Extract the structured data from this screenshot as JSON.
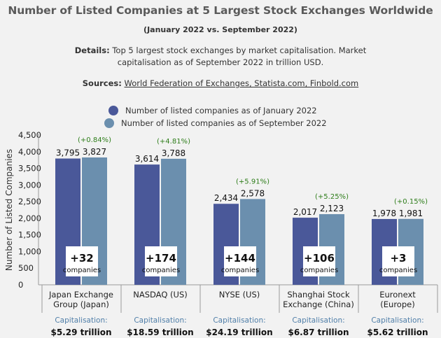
{
  "title": "Number of Listed Companies at 5 Largest Stock Exchanges Worldwide",
  "subtitle": "(January 2022 vs. September 2022)",
  "details": {
    "label": "Details:",
    "text_line1": "Top 5 largest stock exchanges by market capitalisation. Market",
    "text_line2": "capitalisation as of September 2022 in trillion USD."
  },
  "sources": {
    "label": "Sources:",
    "text": "World Federation of Exchanges, Statista.com, Finbold.com"
  },
  "colors": {
    "jan": "#4a5899",
    "sep": "#6b8fae",
    "pct": "#2e7d1a",
    "cap_label": "#4f7ea8"
  },
  "chart_data": {
    "type": "bar",
    "ylabel": "Number of Listed Companies",
    "ylim": [
      0,
      4500
    ],
    "yticks": [
      "0",
      "500",
      "1,000",
      "1,500",
      "2,000",
      "2,500",
      "3,000",
      "3,500",
      "4,000",
      "4,500"
    ],
    "grid": false,
    "legend_position": "top",
    "categories": [
      [
        "Japan Exchange",
        "Group (Japan)"
      ],
      [
        "NASDAQ (US)"
      ],
      [
        "NYSE (US)"
      ],
      [
        "Shanghai Stock",
        "Exchange (China)"
      ],
      [
        "Euronext",
        "(Europe)"
      ]
    ],
    "series": [
      {
        "name": "Number of listed companies as of January 2022",
        "values": [
          3795,
          3614,
          2434,
          2017,
          1978
        ],
        "labels": [
          "3,795",
          "3,614",
          "2,434",
          "2,017",
          "1,978"
        ]
      },
      {
        "name": "Number of listed companies as of September 2022",
        "values": [
          3827,
          3788,
          2578,
          2123,
          1981
        ],
        "labels": [
          "3,827",
          "3,788",
          "2,578",
          "2,123",
          "1,981"
        ]
      }
    ],
    "pct_change": [
      "(+0.84%)",
      "(+4.81%)",
      "(+5.91%)",
      "(+5.25%)",
      "(+0.15%)"
    ],
    "change_values": [
      "+32",
      "+174",
      "+144",
      "+106",
      "+3"
    ],
    "change_unit": "companies",
    "capitalisation_label": "Capitalisation:",
    "capitalisation": [
      "$5.29 trillion",
      "$18.59 trillion",
      "$24.19 trillion",
      "$6.87 trillion",
      "$5.62 trillion"
    ]
  }
}
